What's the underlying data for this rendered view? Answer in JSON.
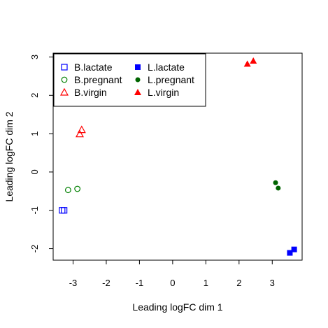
{
  "chart_data": {
    "type": "scatter",
    "xlabel": "Leading logFC dim 1",
    "ylabel": "Leading logFC dim 2",
    "xlim": [
      -3.6,
      3.9
    ],
    "ylim": [
      -2.3,
      3.1
    ],
    "x_ticks": [
      -3,
      -2,
      -1,
      0,
      1,
      2,
      3
    ],
    "y_ticks": [
      -2,
      -1,
      0,
      1,
      2,
      3
    ],
    "x_tick_labels": [
      "-3",
      "-2",
      "-1",
      "0",
      "1",
      "2",
      "3"
    ],
    "y_tick_labels": [
      "-2",
      "-1",
      "0",
      "1",
      "2",
      "3"
    ],
    "grid": false,
    "legend_position": "top-left",
    "series": [
      {
        "name": "B.lactate",
        "color": "#0000ff",
        "marker": "square-open",
        "points": [
          [
            -3.33,
            -1.0
          ],
          [
            -3.27,
            -1.0
          ]
        ]
      },
      {
        "name": "B.pregnant",
        "color": "#008000",
        "marker": "circle-open",
        "points": [
          [
            -3.15,
            -0.47
          ],
          [
            -2.87,
            -0.44
          ]
        ]
      },
      {
        "name": "B.virgin",
        "color": "#ff0000",
        "marker": "triangle-open",
        "points": [
          [
            -2.8,
            0.99
          ],
          [
            -2.74,
            1.1
          ]
        ]
      },
      {
        "name": "L.lactate",
        "color": "#0000ff",
        "marker": "square-filled",
        "points": [
          [
            3.53,
            -2.11
          ],
          [
            3.66,
            -2.02
          ]
        ]
      },
      {
        "name": "L.pregnant",
        "color": "#006400",
        "marker": "circle-filled",
        "points": [
          [
            3.1,
            -0.28
          ],
          [
            3.18,
            -0.42
          ]
        ]
      },
      {
        "name": "L.virgin",
        "color": "#ff0000",
        "marker": "triangle-filled",
        "points": [
          [
            2.25,
            2.82
          ],
          [
            2.43,
            2.9
          ]
        ]
      }
    ]
  }
}
